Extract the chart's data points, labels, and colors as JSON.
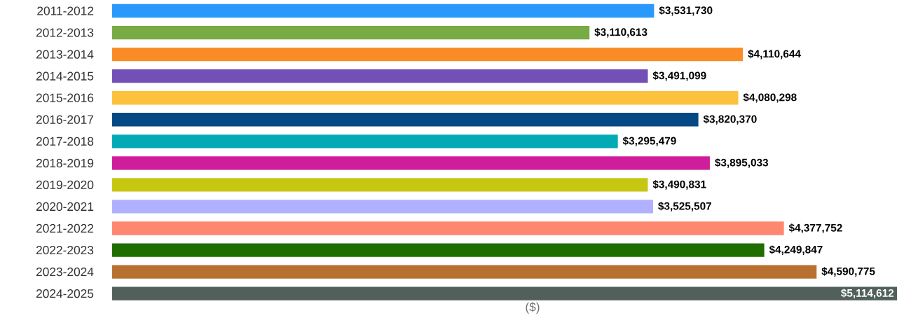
{
  "chart_data": {
    "type": "bar",
    "orientation": "horizontal",
    "xlabel": "($)",
    "categories": [
      "2011-2012",
      "2012-2013",
      "2013-2014",
      "2014-2015",
      "2015-2016",
      "2016-2017",
      "2017-2018",
      "2018-2019",
      "2019-2020",
      "2020-2021",
      "2021-2022",
      "2022-2023",
      "2023-2024",
      "2024-2025"
    ],
    "values": [
      3531730,
      3110613,
      4110644,
      3491099,
      4080298,
      3820370,
      3295479,
      3895033,
      3490831,
      3525507,
      4377752,
      4249847,
      4590775,
      5114612
    ],
    "value_labels": [
      "$3,531,730",
      "$3,110,613",
      "$4,110,644",
      "$3,491,099",
      "$4,080,298",
      "$3,820,370",
      "$3,295,479",
      "$3,895,033",
      "$3,490,831",
      "$3,525,507",
      "$4,377,752",
      "$4,249,847",
      "$4,590,775",
      "$5,114,612"
    ],
    "colors": [
      "#2b99fb",
      "#77ab43",
      "#fa8c28",
      "#7350b5",
      "#fcc23e",
      "#044884",
      "#01aab5",
      "#cf1d9b",
      "#c6c711",
      "#b0b0fe",
      "#fe8770",
      "#1f6e00",
      "#b87030",
      "#51605a"
    ]
  }
}
